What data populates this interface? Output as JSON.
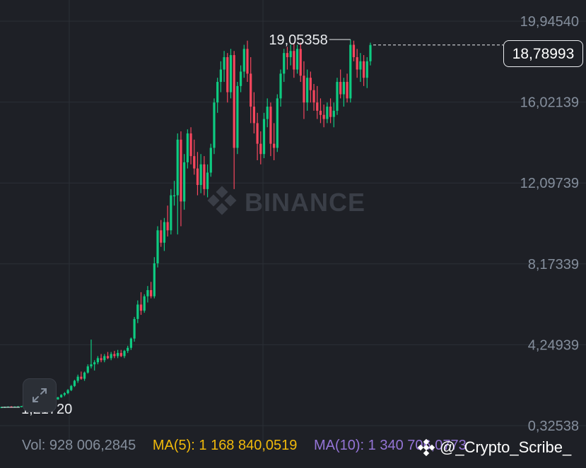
{
  "chart_data": {
    "type": "candlestick",
    "y_ticks": [
      "19,94540",
      "16,02139",
      "12,09739",
      "8,17339",
      "4,24939",
      "0,32538"
    ],
    "y_tick_values": [
      19.9454,
      16.02139,
      12.09739,
      8.17339,
      4.24939,
      0.32538
    ],
    "ylim": [
      0.0,
      21.0
    ],
    "grid": true,
    "high_label": "19,05358",
    "high_value": 19.05358,
    "low_label": "1,21720",
    "low_value": 1.2172,
    "current_price": "18,78993",
    "current_value": 18.78993,
    "colors": {
      "up": "#0ecb81",
      "down": "#f6465d",
      "grid": "#2b2f36",
      "background": "#1e2026"
    },
    "candles": [
      [
        1.22,
        1.24,
        1.2,
        1.23
      ],
      [
        1.23,
        1.25,
        1.21,
        1.24
      ],
      [
        1.24,
        1.26,
        1.22,
        1.25
      ],
      [
        1.25,
        1.27,
        1.23,
        1.24
      ],
      [
        1.24,
        1.26,
        1.22,
        1.25
      ],
      [
        1.25,
        1.27,
        1.23,
        1.26
      ],
      [
        1.26,
        1.28,
        1.24,
        1.27
      ],
      [
        1.27,
        1.29,
        1.25,
        1.28
      ],
      [
        1.28,
        1.3,
        1.26,
        1.29
      ],
      [
        1.29,
        1.32,
        1.27,
        1.3
      ],
      [
        1.3,
        1.34,
        1.28,
        1.33
      ],
      [
        1.33,
        1.36,
        1.31,
        1.35
      ],
      [
        1.35,
        1.38,
        1.33,
        1.37
      ],
      [
        1.37,
        1.4,
        1.35,
        1.39
      ],
      [
        1.39,
        1.45,
        1.37,
        1.44
      ],
      [
        1.44,
        1.52,
        1.42,
        1.5
      ],
      [
        1.5,
        1.62,
        1.48,
        1.6
      ],
      [
        1.6,
        1.72,
        1.58,
        1.7
      ],
      [
        1.7,
        1.85,
        1.68,
        1.82
      ],
      [
        1.82,
        1.95,
        1.75,
        1.9
      ],
      [
        1.9,
        2.1,
        1.85,
        2.05
      ],
      [
        2.05,
        2.3,
        2.0,
        2.25
      ],
      [
        2.25,
        2.55,
        2.2,
        2.5
      ],
      [
        2.5,
        2.8,
        2.4,
        2.7
      ],
      [
        2.7,
        2.95,
        2.55,
        2.6
      ],
      [
        2.6,
        2.95,
        2.5,
        2.9
      ],
      [
        2.9,
        3.3,
        2.85,
        3.2
      ],
      [
        3.2,
        4.5,
        3.1,
        3.3
      ],
      [
        3.3,
        3.5,
        3.0,
        3.4
      ],
      [
        3.4,
        3.7,
        3.3,
        3.6
      ],
      [
        3.6,
        3.8,
        3.4,
        3.5
      ],
      [
        3.5,
        3.8,
        3.4,
        3.7
      ],
      [
        3.7,
        3.9,
        3.55,
        3.6
      ],
      [
        3.6,
        3.9,
        3.5,
        3.8
      ],
      [
        3.8,
        3.95,
        3.6,
        3.7
      ],
      [
        3.7,
        4.0,
        3.6,
        3.85
      ],
      [
        3.85,
        4.0,
        3.65,
        3.7
      ],
      [
        3.7,
        4.0,
        3.6,
        3.95
      ],
      [
        3.95,
        4.2,
        3.85,
        4.1
      ],
      [
        4.1,
        4.6,
        4.0,
        4.55
      ],
      [
        4.55,
        5.6,
        4.4,
        5.5
      ],
      [
        5.5,
        6.4,
        5.3,
        6.2
      ],
      [
        6.2,
        6.8,
        5.7,
        5.9
      ],
      [
        5.9,
        6.7,
        5.8,
        6.6
      ],
      [
        6.6,
        7.1,
        6.3,
        6.9
      ],
      [
        6.9,
        7.3,
        6.5,
        6.6
      ],
      [
        6.6,
        8.5,
        6.5,
        8.2
      ],
      [
        8.2,
        10.0,
        8.0,
        9.8
      ],
      [
        9.8,
        10.3,
        9.0,
        9.2
      ],
      [
        9.2,
        10.4,
        8.8,
        10.2
      ],
      [
        10.2,
        11.0,
        9.5,
        9.8
      ],
      [
        9.8,
        11.8,
        9.6,
        11.5
      ],
      [
        11.5,
        12.2,
        11.0,
        11.5
      ],
      [
        11.5,
        14.5,
        9.6,
        14.2
      ],
      [
        14.2,
        14.6,
        10.0,
        11.2
      ],
      [
        11.2,
        13.5,
        10.8,
        13.1
      ],
      [
        13.1,
        14.7,
        12.8,
        14.5
      ],
      [
        14.5,
        14.8,
        13.0,
        13.4
      ],
      [
        13.4,
        14.2,
        12.5,
        12.8
      ],
      [
        12.8,
        13.6,
        11.5,
        12.0
      ],
      [
        12.0,
        13.5,
        11.6,
        13.0
      ],
      [
        13.0,
        13.4,
        11.5,
        11.8
      ],
      [
        11.8,
        13.0,
        11.4,
        12.6
      ],
      [
        12.6,
        14.0,
        12.4,
        13.8
      ],
      [
        13.8,
        16.2,
        13.5,
        16.0
      ],
      [
        16.0,
        17.2,
        15.5,
        17.0
      ],
      [
        17.0,
        18.0,
        16.5,
        17.6
      ],
      [
        17.6,
        18.5,
        17.0,
        18.2
      ],
      [
        18.2,
        18.4,
        16.0,
        16.5
      ],
      [
        16.5,
        18.6,
        16.2,
        18.3
      ],
      [
        18.3,
        18.5,
        11.8,
        13.8
      ],
      [
        13.8,
        17.0,
        13.5,
        16.8
      ],
      [
        16.8,
        17.8,
        16.5,
        17.5
      ],
      [
        17.5,
        18.8,
        17.2,
        18.6
      ],
      [
        18.6,
        19.0,
        17.0,
        17.4
      ],
      [
        17.4,
        18.2,
        15.0,
        15.8
      ],
      [
        15.8,
        16.5,
        14.5,
        15.0
      ],
      [
        15.0,
        15.5,
        13.2,
        14.0
      ],
      [
        14.0,
        14.6,
        13.0,
        13.5
      ],
      [
        13.5,
        15.5,
        13.3,
        15.2
      ],
      [
        15.2,
        16.2,
        14.8,
        15.8
      ],
      [
        15.8,
        16.0,
        13.4,
        14.0
      ],
      [
        14.0,
        15.0,
        13.2,
        13.8
      ],
      [
        13.8,
        16.4,
        13.6,
        16.2
      ],
      [
        16.2,
        17.6,
        15.8,
        17.4
      ],
      [
        17.4,
        18.6,
        17.0,
        18.4
      ],
      [
        18.4,
        18.7,
        17.6,
        18.2
      ],
      [
        18.2,
        18.8,
        17.8,
        18.5
      ],
      [
        18.5,
        18.9,
        17.2,
        17.6
      ],
      [
        17.6,
        18.8,
        17.4,
        18.6
      ],
      [
        18.6,
        18.9,
        17.0,
        17.3
      ],
      [
        17.3,
        18.0,
        15.2,
        16.0
      ],
      [
        16.0,
        17.6,
        15.6,
        17.2
      ],
      [
        17.2,
        17.5,
        16.0,
        16.6
      ],
      [
        16.6,
        16.9,
        15.6,
        16.0
      ],
      [
        16.0,
        16.8,
        15.2,
        15.6
      ],
      [
        15.6,
        16.2,
        15.0,
        15.4
      ],
      [
        15.4,
        15.9,
        14.8,
        15.2
      ],
      [
        15.2,
        16.0,
        15.0,
        15.8
      ],
      [
        15.8,
        16.2,
        15.0,
        15.3
      ],
      [
        15.3,
        16.0,
        14.8,
        15.6
      ],
      [
        15.6,
        17.2,
        15.4,
        17.0
      ],
      [
        17.0,
        17.6,
        16.2,
        16.4
      ],
      [
        16.4,
        17.2,
        15.8,
        17.0
      ],
      [
        17.0,
        17.4,
        16.0,
        16.2
      ],
      [
        16.2,
        19.05,
        16.0,
        18.8
      ],
      [
        18.8,
        19.0,
        18.0,
        18.2
      ],
      [
        18.2,
        18.6,
        17.2,
        17.6
      ],
      [
        17.6,
        18.4,
        17.0,
        18.0
      ],
      [
        18.0,
        18.3,
        16.8,
        17.2
      ],
      [
        17.2,
        18.2,
        16.7,
        18.0
      ],
      [
        18.0,
        18.9,
        17.8,
        18.79
      ]
    ]
  },
  "expand_icon": "expand-diagonal-icon",
  "watermark": {
    "text": "BINANCE",
    "icon": "binance-logo-icon"
  },
  "bottom_bar": {
    "vol": "Vol: 928 006,2845",
    "ma5": "MA(5): 1 168 840,0519",
    "ma10": "MA(10): 1 340 706,0773"
  },
  "credit": {
    "text": "@_Crypto_Scribe_",
    "icon": "binance-logo-icon"
  }
}
